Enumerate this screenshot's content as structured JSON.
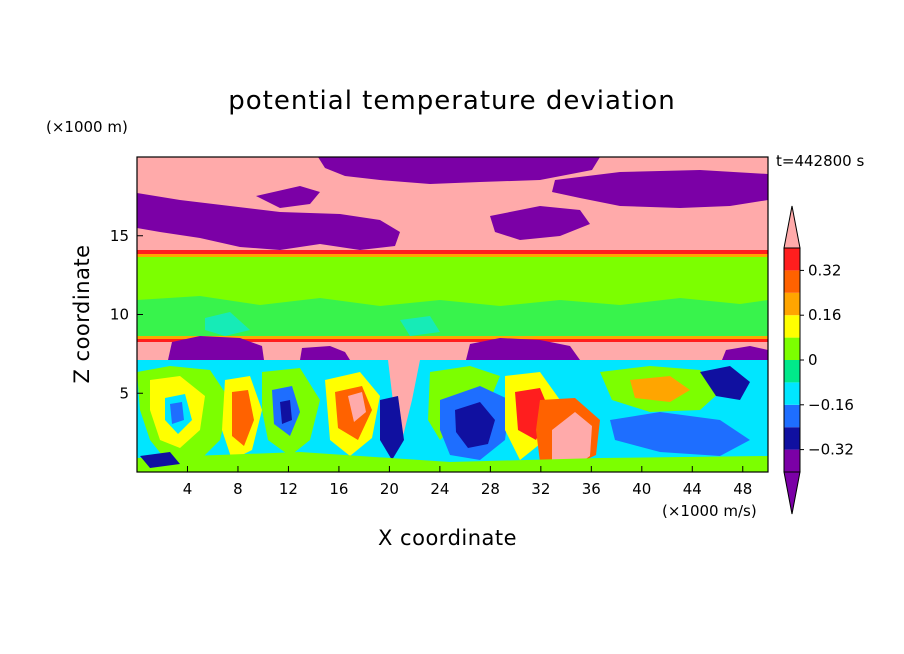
{
  "chart_data": {
    "type": "heatmap",
    "title": "potential temperature deviation",
    "xlabel": "X coordinate",
    "ylabel": "Z coordinate",
    "x_unit": "(×1000 m/s)",
    "y_unit": "(×1000 m)",
    "time_label": "t=442800 s",
    "xlim": [
      0,
      50
    ],
    "ylim": [
      0,
      20
    ],
    "x_ticks": [
      4,
      8,
      12,
      16,
      20,
      24,
      28,
      32,
      36,
      40,
      44,
      48
    ],
    "y_ticks": [
      5,
      10,
      15
    ],
    "colorbar": {
      "levels": [
        -0.4,
        -0.32,
        -0.24,
        -0.16,
        -0.08,
        0,
        0.08,
        0.16,
        0.24,
        0.32,
        0.4
      ],
      "labels": [
        "0.32",
        "0.16",
        "0",
        "−0.16",
        "−0.32"
      ],
      "label_values": [
        0.32,
        0.16,
        0,
        -0.16,
        -0.32
      ],
      "colors": [
        "#7b00a6",
        "#1010a0",
        "#1e6eff",
        "#00e6ff",
        "#00e98a",
        "#7cff00",
        "#ffff00",
        "#ffa500",
        "#ff6200",
        "#ff1e1e"
      ],
      "extend_low_color": "#7b00a6",
      "extend_high_color": "#ffaaaa"
    },
    "regions": [
      {
        "z_range": [
          13.9,
          20
        ],
        "description_value": 0.4,
        "color": "#ffaaaa"
      },
      {
        "z_range": [
          8.6,
          13.9
        ],
        "description_value": 0.04,
        "color": "#7cff00"
      },
      {
        "z_range": [
          7.0,
          8.6
        ],
        "description_value": 0.4,
        "color": "#ffaaaa"
      },
      {
        "z_range": [
          0,
          7.0
        ],
        "description_value": "mixed",
        "color": "mixed"
      }
    ]
  }
}
